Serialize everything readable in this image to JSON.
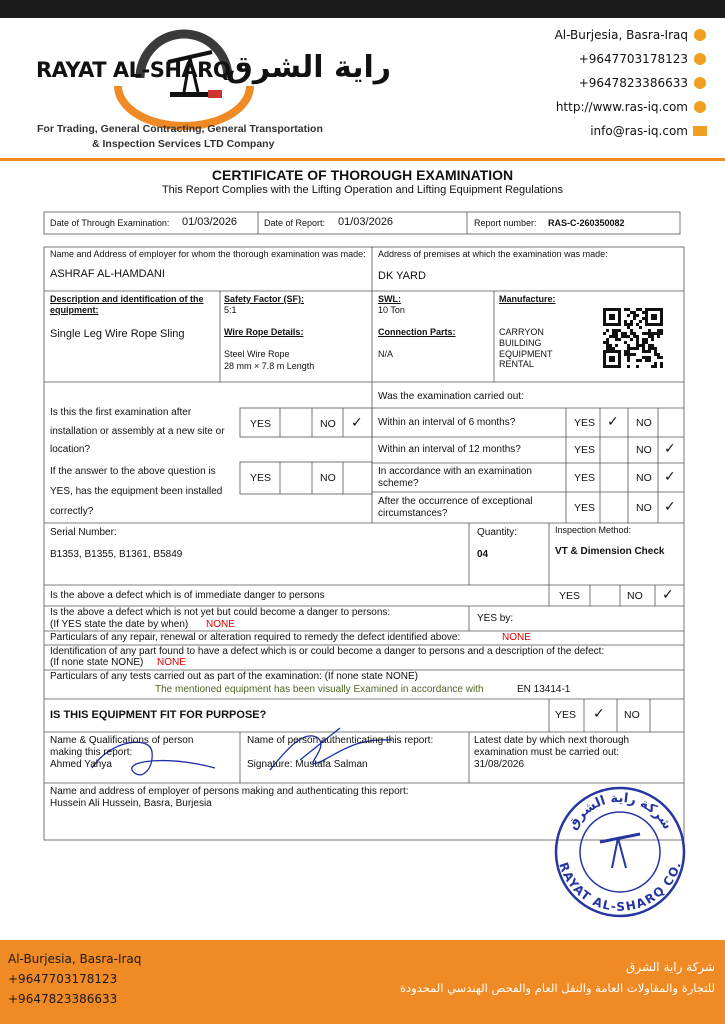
{
  "header": {
    "company_en": "RAYAT AL-SHARQ",
    "company_ar": "راية الشرق",
    "tagline_1": "For Trading, General Contracting, General Transportation",
    "tagline_2": "& Inspection Services LTD Company"
  },
  "contact": {
    "address": "Al-Burjesia, Basra-Iraq",
    "phone_1": "+9647703178123",
    "phone_2": "+9647823386633",
    "website": "http://www.ras-iq.com",
    "email": "info@ras-iq.com"
  },
  "certificate": {
    "title": "CERTIFICATE OF THOROUGH EXAMINATION",
    "subtitle": "This Report Complies with the Lifting Operation and Lifting Equipment Regulations"
  },
  "info": {
    "exam_date_label": "Date of Through Examination:",
    "exam_date": "01/03/2026",
    "report_date_label": "Date of Report:",
    "report_date": "01/03/2026",
    "report_number_label": "Report number:",
    "report_number": "RAS-C-260350082"
  },
  "employer": {
    "label": "Name and Address of employer for whom the thorough examination was made:",
    "value": "ASHRAF AL-HAMDANI"
  },
  "premises": {
    "label": "Address of premises at which the examination was made:",
    "value": "DK YARD"
  },
  "equipment": {
    "description_label": "Description and identification of the equipment:",
    "description": "Single Leg Wire Rope Sling",
    "safety_factor_label": "Safety Factor (SF):",
    "safety_factor": "5:1",
    "wire_rope_label": "Wire Rope Details:",
    "wire_rope_1": "Steel Wire Rope",
    "wire_rope_2": "28 mm × 7.8 m Length",
    "swl_label": "SWL:",
    "swl": "10 Ton",
    "connection_label": "Connection Parts:",
    "connection": "N/A",
    "manufacture_label": "Manufacture:",
    "manufacture": "CARRYON BUILDING EQUIPMENT RENTAL"
  },
  "first_exam": {
    "rows": [
      {
        "question": "Is this the first examination after installation or assembly at a new site or location?",
        "yes": "YES",
        "no": "NO",
        "no_check": "✓"
      },
      {
        "question": "If the answer to the above question is YES, has the equipment been installed correctly?",
        "yes": "YES",
        "no": "NO"
      }
    ]
  },
  "carried_out": {
    "label": "Was the examination carried out:",
    "rows": [
      {
        "question": "Within an interval of 6 months?",
        "yes": "YES",
        "yes_check": "✓",
        "no": "NO"
      },
      {
        "question": "Within an interval of 12 months?",
        "yes": "YES",
        "no": "NO",
        "no_check": "✓"
      },
      {
        "question": "In accordance with an examination scheme?",
        "yes": "YES",
        "no": "NO",
        "no_check": "✓"
      },
      {
        "question": "After the occurrence of exceptional circumstances?",
        "yes": "YES",
        "no": "NO",
        "no_check": "✓"
      }
    ]
  },
  "serial": {
    "label": "Serial Number:",
    "value": "B1353, B1355, B1361, B5849",
    "quantity_label": "Quantity:",
    "quantity": "04",
    "method_label": "Inspection Method:",
    "method": "VT & Dimension Check"
  },
  "defects": {
    "immediate": "Is the above a defect which is of immediate danger to persons",
    "immediate_yes": "YES",
    "immediate_no": "NO",
    "immediate_no_check": "✓",
    "future_1": "Is the above a defect which is not yet but could become a danger to persons:",
    "future_2": "(If YES state the date by when)",
    "future_none": "NONE",
    "yes_by": "YES by:",
    "repair": "Particulars of any repair, renewal or alteration required to remedy the defect identified above:",
    "repair_none": "NONE",
    "ident_1": "Identification of any part found to have a defect which is or could become a danger to persons and a description of the defect:",
    "ident_2": "(If none state NONE)",
    "ident_none": "NONE",
    "tests_1": "Particulars of any tests carried out as part of the examination: (If none state NONE)",
    "tests_2": "The mentioned equipment has been visually Examined in accordance with",
    "tests_standard": "EN 13414-1"
  },
  "fit": {
    "question": "IS THIS EQUIPMENT FIT FOR PURPOSE?",
    "yes": "YES",
    "yes_check": "✓",
    "no": "NO"
  },
  "signatures": {
    "maker_label": "Name & Qualifications of person making this report:",
    "maker": "Ahmed Yahya",
    "auth_label": "Name of person authenticating this report:",
    "auth": "Signature: Mustafa Salman",
    "next_label": "Latest date by which next thorough examination must be carried out:",
    "next_date": "31/08/2026"
  },
  "employer_persons": {
    "label": "Name and address of employer of persons making and authenticating this report:",
    "value": "Hussein Ali Hussein, Basra, Burjesia"
  },
  "stamp": {
    "arabic": "شركة راية الشرق",
    "english": "RAYAT AL-SHARQ CO."
  },
  "footer": {
    "address": "Al-Burjesia, Basra-Iraq",
    "phone_1": "+9647703178123",
    "phone_2": "+9647823386633",
    "arabic_1": "شركة راية الشرق",
    "arabic_2": "للتجارة والمقاولات العامة والنقل العام والفحص الهندسي المحدودة"
  }
}
